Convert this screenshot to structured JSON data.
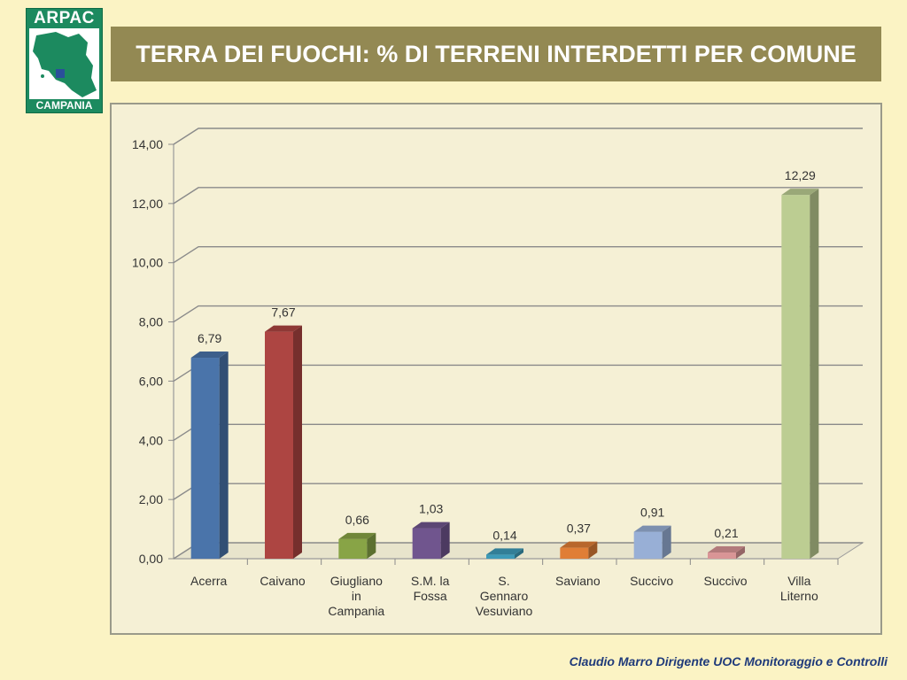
{
  "logo": {
    "top_text": "ARPAC",
    "bottom_text": "CAMPANIA"
  },
  "header": {
    "title": "TERRA DEI FUOCHI: % DI TERRENI INTERDETTI PER COMUNE"
  },
  "footer": {
    "text": "Claudio Marro Dirigente UOC Monitoraggio e Controlli"
  },
  "chart_data": {
    "type": "bar",
    "title": "",
    "xlabel": "",
    "ylabel": "",
    "ylim": [
      0,
      14
    ],
    "yticks": [
      "0,00",
      "2,00",
      "4,00",
      "6,00",
      "8,00",
      "10,00",
      "12,00",
      "14,00"
    ],
    "grid": true,
    "categories": [
      [
        "Acerra"
      ],
      [
        "Caivano"
      ],
      [
        "Giugliano",
        "in",
        "Campania"
      ],
      [
        "S.M. la",
        "Fossa"
      ],
      [
        "S.",
        "Gennaro",
        "Vesuviano"
      ],
      [
        "Saviano"
      ],
      [
        "Succivo"
      ],
      [
        "Succivo"
      ],
      [
        "Villa",
        "Literno"
      ]
    ],
    "values": [
      6.79,
      7.67,
      0.66,
      1.03,
      0.14,
      0.37,
      0.91,
      0.21,
      12.29
    ],
    "value_labels": [
      "6,79",
      "7,67",
      "0,66",
      "1,03",
      "0,14",
      "0,37",
      "0,91",
      "0,21",
      "12,29"
    ],
    "colors": [
      "#4a74aa",
      "#ad4542",
      "#88a446",
      "#70558e",
      "#3d9ab8",
      "#e07e36",
      "#98afd6",
      "#d99596",
      "#bccd92"
    ]
  }
}
